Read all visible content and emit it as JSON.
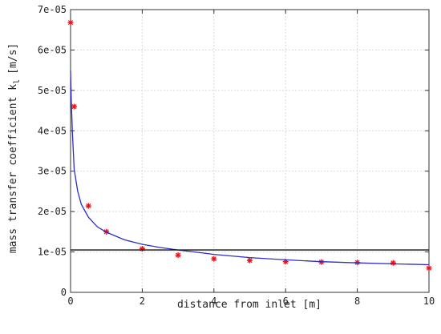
{
  "chart_data": {
    "type": "scatter",
    "title": "",
    "xlabel": "distance from inlet [m]",
    "ylabel_main": "mass transfer coefficient k",
    "ylabel_sub": "l",
    "ylabel_unit": "[m/s]",
    "xlim": [
      0,
      10
    ],
    "ylim": [
      0,
      7e-05
    ],
    "x_ticks": [
      0,
      2,
      4,
      6,
      8,
      10
    ],
    "x_tick_labels": [
      "0",
      "2",
      "4",
      "6",
      "8",
      "10"
    ],
    "y_ticks": [
      0,
      1e-05,
      2e-05,
      3e-05,
      4e-05,
      5e-05,
      6e-05,
      7e-05
    ],
    "y_tick_labels": [
      "0",
      "1e-05",
      "2e-05",
      "3e-05",
      "4e-05",
      "5e-05",
      "6e-05",
      "7e-05"
    ],
    "grid": true,
    "series": [
      {
        "type": "scatter",
        "marker": "star",
        "color": "#e8141c",
        "x": [
          0,
          0.1,
          0.5,
          1,
          2,
          3,
          4,
          5,
          6,
          7,
          8,
          9,
          10
        ],
        "y": [
          6.68e-05,
          4.6e-05,
          2.14e-05,
          1.5e-05,
          1.08e-05,
          9.2e-06,
          8.3e-06,
          7.9e-06,
          7.6e-06,
          7.5e-06,
          7.4e-06,
          7.3e-06,
          6e-06
        ]
      },
      {
        "type": "line",
        "color": "#2c2cc8",
        "x": [
          0.0,
          0.02,
          0.05,
          0.1,
          0.2,
          0.3,
          0.5,
          0.75,
          1,
          1.5,
          2,
          2.5,
          3,
          4,
          5,
          6,
          7,
          8,
          9,
          10
        ],
        "y": [
          5.5e-05,
          4.75e-05,
          4e-05,
          3.05e-05,
          2.5e-05,
          2.18e-05,
          1.86e-05,
          1.62e-05,
          1.49e-05,
          1.3e-05,
          1.19e-05,
          1.11e-05,
          1.05e-05,
          9.4e-06,
          8.6e-06,
          8.05e-06,
          7.6e-06,
          7.3e-06,
          7.05e-06,
          6.85e-06
        ]
      },
      {
        "type": "hline",
        "color": "#111111",
        "y": 1.05e-05
      }
    ]
  }
}
